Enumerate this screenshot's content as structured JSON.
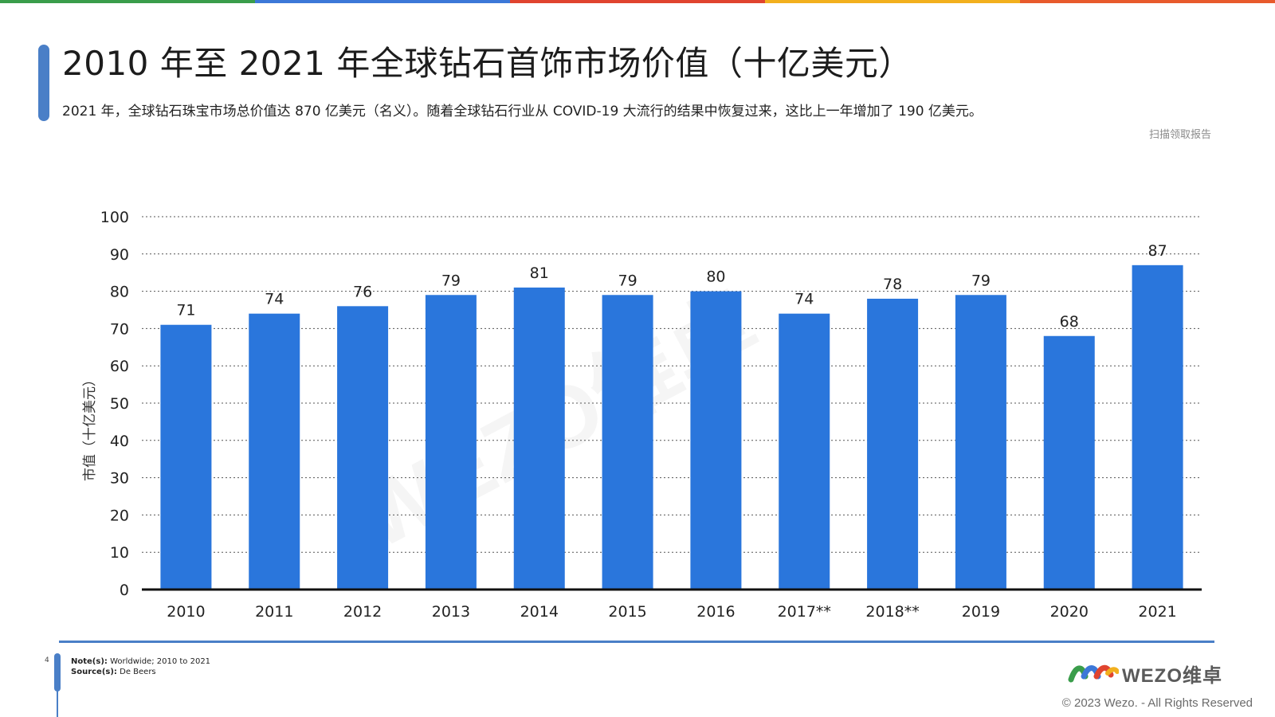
{
  "header": {
    "title": "2010 年至 2021 年全球钻石首饰市场价值（十亿美元）",
    "subtitle": "2021 年，全球钻石珠宝市场总价值达 870 亿美元（名义）。随着全球钻石行业从 COVID-19 大流行的结果中恢复过来，这比上一年增加了 190 亿美元。",
    "scan_note": "扫描领取报告"
  },
  "colors": {
    "bar": "#2a76dc",
    "accent": "#4a7fc7",
    "topbar": [
      "#3a9d4b",
      "#3c78d8",
      "#e0442f",
      "#f2b01e",
      "#e85a2c"
    ]
  },
  "chart_data": {
    "type": "bar",
    "categories": [
      "2010",
      "2011",
      "2012",
      "2013",
      "2014",
      "2015",
      "2016",
      "2017**",
      "2018**",
      "2019",
      "2020",
      "2021"
    ],
    "values": [
      71,
      74,
      76,
      79,
      81,
      79,
      80,
      74,
      78,
      79,
      68,
      87
    ],
    "title": "",
    "xlabel": "",
    "ylabel": "市值（十亿美元）",
    "ylim": [
      0,
      100
    ],
    "yticks": [
      0,
      10,
      20,
      30,
      40,
      50,
      60,
      70,
      80,
      90,
      100
    ],
    "grid": true,
    "data_labels": true,
    "legend": "none"
  },
  "watermark": "WEZO维卓",
  "footer": {
    "page_number": "4",
    "notes_label": "Note(s):",
    "notes_text": " Worldwide; 2010 to 2021",
    "source_label": "Source(s):",
    "source_text": " De Beers",
    "logo_text": "WEZO维卓",
    "copyright": "© 2023 Wezo. - All Rights Reserved"
  }
}
